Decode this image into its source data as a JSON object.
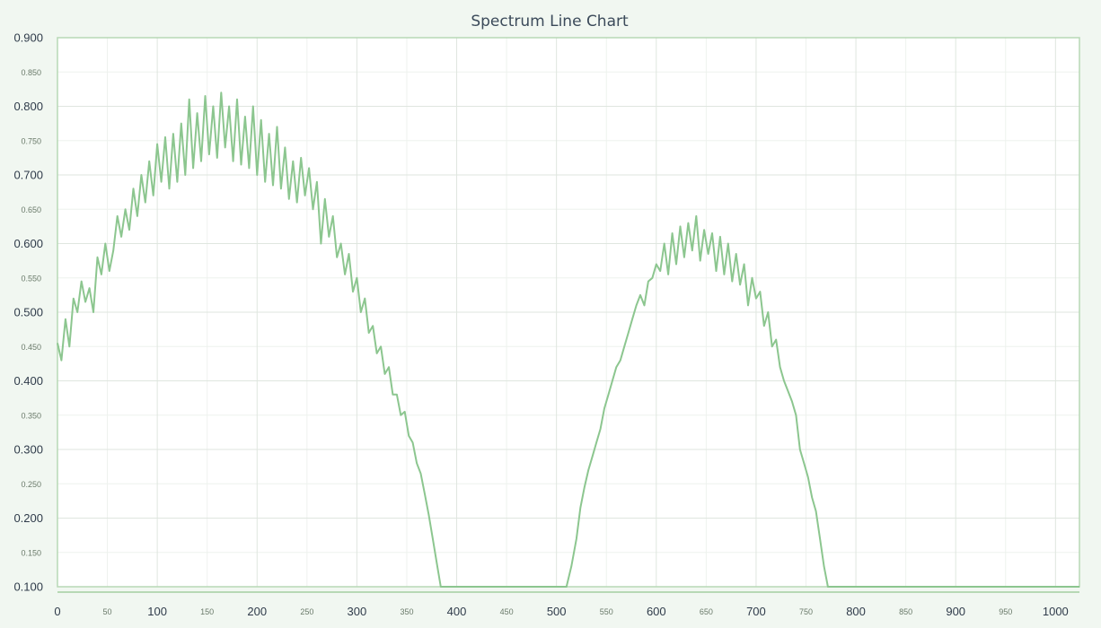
{
  "chart_data": {
    "type": "line",
    "title": "Spectrum Line Chart",
    "xlabel": "",
    "ylabel": "",
    "xlim": [
      0,
      1024
    ],
    "ylim": [
      0.1,
      0.9
    ],
    "x_major_ticks": [
      0,
      100,
      200,
      300,
      400,
      500,
      600,
      700,
      800,
      900,
      1000
    ],
    "x_minor_ticks": [
      50,
      150,
      250,
      350,
      450,
      550,
      650,
      750,
      850,
      950
    ],
    "y_major_ticks": [
      0.1,
      0.2,
      0.3,
      0.4,
      0.5,
      0.6,
      0.7,
      0.8,
      0.9
    ],
    "y_minor_ticks": [
      0.15,
      0.25,
      0.35,
      0.45,
      0.55,
      0.65,
      0.75,
      0.85
    ],
    "grid": true,
    "legend": "none",
    "colors": {
      "line": "#8cc68f",
      "frame": "#b7d8b5",
      "background": "#f1f7f1",
      "plot_bg": "#ffffff"
    },
    "series": [
      {
        "x": [
          0,
          4,
          8,
          12,
          16,
          20,
          24,
          28,
          32,
          36,
          40,
          44,
          48,
          52,
          56,
          60,
          64,
          68,
          72,
          76,
          80,
          84,
          88,
          92,
          96,
          100,
          104,
          108,
          112,
          116,
          120,
          124,
          128,
          132,
          136,
          140,
          144,
          148,
          152,
          156,
          160,
          164,
          168,
          172,
          176,
          180,
          184,
          188,
          192,
          196,
          200,
          204,
          208,
          212,
          216,
          220,
          224,
          228,
          232,
          236,
          240,
          244,
          248,
          252,
          256,
          260,
          264,
          268,
          272,
          276,
          280,
          284,
          288,
          292,
          296,
          300,
          304,
          308,
          312,
          316,
          320,
          324,
          328,
          332,
          336,
          340,
          344,
          348,
          352,
          356,
          360,
          364,
          368,
          372,
          376,
          380,
          384,
          400,
          450,
          500,
          510,
          515,
          520,
          524,
          528,
          532,
          536,
          540,
          544,
          548,
          552,
          556,
          560,
          564,
          568,
          572,
          576,
          580,
          584,
          588,
          592,
          596,
          600,
          604,
          608,
          612,
          616,
          620,
          624,
          628,
          632,
          636,
          640,
          644,
          648,
          652,
          656,
          660,
          664,
          668,
          672,
          676,
          680,
          684,
          688,
          692,
          696,
          700,
          704,
          708,
          712,
          716,
          720,
          724,
          728,
          732,
          736,
          740,
          744,
          748,
          752,
          756,
          760,
          764,
          768,
          772,
          800,
          900,
          1000,
          1024
        ],
        "y": [
          0.455,
          0.43,
          0.49,
          0.45,
          0.52,
          0.5,
          0.545,
          0.515,
          0.535,
          0.5,
          0.58,
          0.555,
          0.6,
          0.56,
          0.59,
          0.64,
          0.61,
          0.65,
          0.62,
          0.68,
          0.64,
          0.7,
          0.66,
          0.72,
          0.67,
          0.745,
          0.69,
          0.755,
          0.68,
          0.76,
          0.69,
          0.775,
          0.7,
          0.81,
          0.71,
          0.79,
          0.72,
          0.815,
          0.73,
          0.8,
          0.725,
          0.82,
          0.74,
          0.8,
          0.72,
          0.81,
          0.715,
          0.785,
          0.71,
          0.8,
          0.7,
          0.78,
          0.69,
          0.76,
          0.685,
          0.77,
          0.68,
          0.74,
          0.665,
          0.72,
          0.66,
          0.725,
          0.67,
          0.71,
          0.65,
          0.69,
          0.6,
          0.665,
          0.61,
          0.64,
          0.58,
          0.6,
          0.555,
          0.585,
          0.53,
          0.55,
          0.5,
          0.52,
          0.47,
          0.48,
          0.44,
          0.45,
          0.41,
          0.42,
          0.38,
          0.38,
          0.35,
          0.355,
          0.32,
          0.31,
          0.28,
          0.265,
          0.235,
          0.205,
          0.17,
          0.135,
          0.1,
          0.1,
          0.1,
          0.1,
          0.1,
          0.13,
          0.17,
          0.215,
          0.245,
          0.27,
          0.29,
          0.31,
          0.33,
          0.36,
          0.38,
          0.4,
          0.42,
          0.43,
          0.45,
          0.47,
          0.49,
          0.51,
          0.525,
          0.51,
          0.545,
          0.55,
          0.57,
          0.56,
          0.6,
          0.555,
          0.615,
          0.57,
          0.625,
          0.58,
          0.63,
          0.59,
          0.64,
          0.575,
          0.62,
          0.585,
          0.615,
          0.56,
          0.61,
          0.555,
          0.6,
          0.545,
          0.585,
          0.54,
          0.57,
          0.51,
          0.55,
          0.52,
          0.53,
          0.48,
          0.5,
          0.45,
          0.46,
          0.42,
          0.4,
          0.385,
          0.37,
          0.35,
          0.3,
          0.28,
          0.26,
          0.23,
          0.21,
          0.17,
          0.13,
          0.1,
          0.1,
          0.1,
          0.1,
          0.1
        ]
      }
    ]
  }
}
